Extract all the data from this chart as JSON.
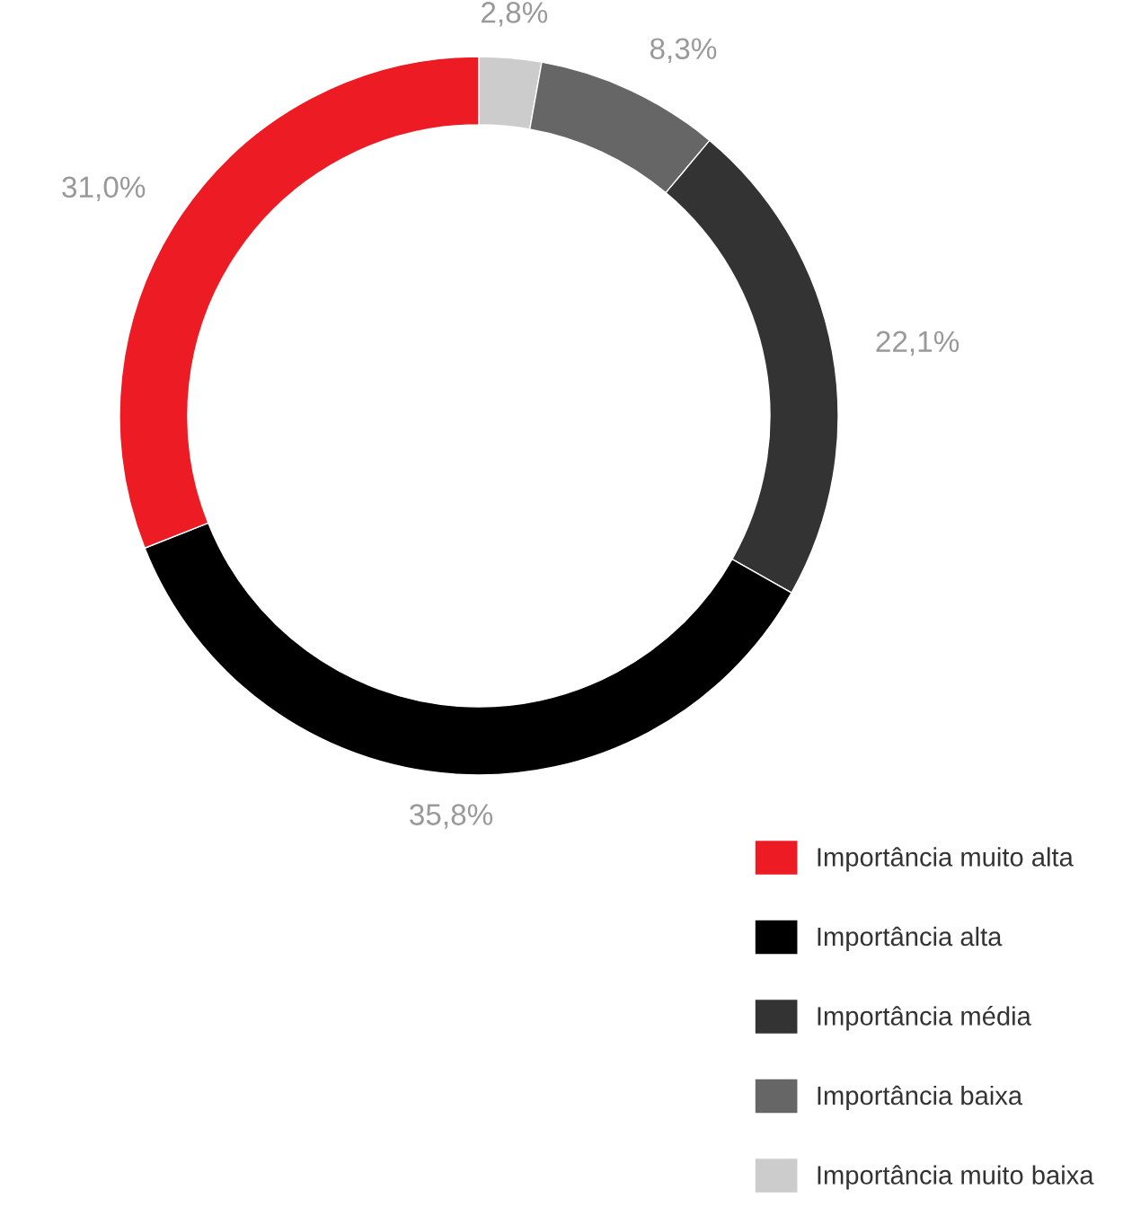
{
  "chart_data": {
    "type": "donut",
    "categories": [
      "Importância muito baixa",
      "Importância baixa",
      "Importância média",
      "Importância alta",
      "Importância muito alta"
    ],
    "values": [
      2.8,
      8.3,
      22.1,
      35.8,
      31.0
    ],
    "colors": [
      "#cccccc",
      "#666666",
      "#333333",
      "#000000",
      "#ed1c24"
    ],
    "value_labels": [
      "2,8%",
      "8,3%",
      "22,1%",
      "35,8%",
      "31,0%"
    ],
    "legend": "bottom right"
  }
}
